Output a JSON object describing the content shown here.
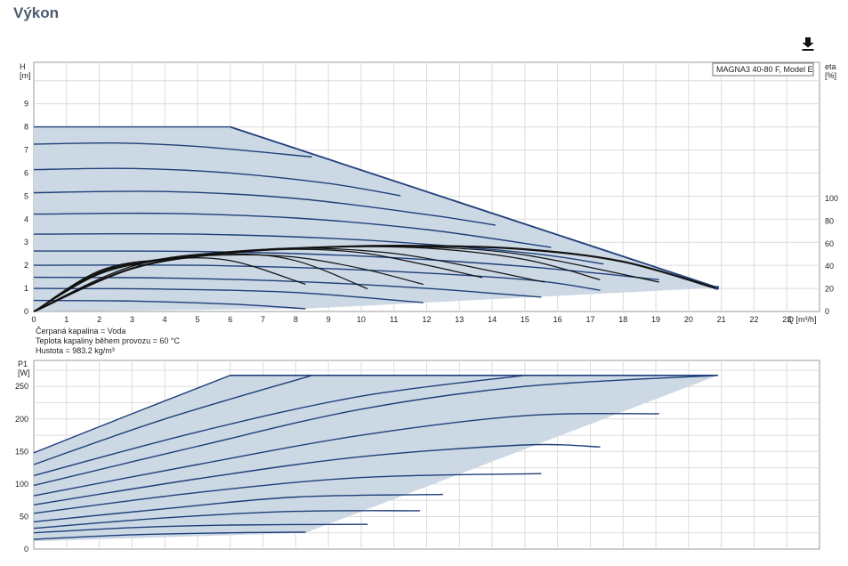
{
  "page": {
    "title": "Výkon"
  },
  "toolbar": {
    "download_icon": "download-icon"
  },
  "fluid_notes": [
    "Čerpaná kapalina = Voda",
    "Teplota kapaliny během provozu = 60 °C",
    "Hustota = 983.2 kg/m³"
  ],
  "colors": {
    "curve": "#1f3f7a",
    "area": "#ccd8e4",
    "grid": "#dcdcdc",
    "efficiency": "#111111"
  },
  "chart_data": [
    {
      "type": "line",
      "id": "head",
      "legend": "MAGNA3 40-80 F, Model E",
      "legend_position": "top-right",
      "ylabel": "H\n[m]",
      "y2label": "eta\n[%]",
      "xlabel": "Q [m³/h]",
      "xlim": [
        0,
        24
      ],
      "ylim": [
        0,
        10.8
      ],
      "y2lim": [
        0,
        100
      ],
      "x_ticks": [
        0,
        1,
        2,
        3,
        4,
        5,
        6,
        7,
        8,
        9,
        10,
        11,
        12,
        13,
        14,
        15,
        16,
        17,
        18,
        19,
        20,
        21,
        22,
        23
      ],
      "y_ticks": [
        0,
        1,
        2,
        3,
        4,
        5,
        6,
        7,
        8,
        9
      ],
      "y2_ticks": [
        0,
        20,
        40,
        60,
        80,
        100
      ],
      "grid": true,
      "envelope": [
        [
          0,
          8
        ],
        [
          6,
          8
        ],
        [
          20.9,
          1.03
        ],
        [
          8.3,
          0.12
        ],
        [
          0,
          0.0
        ]
      ],
      "series": [
        {
          "x": [
            0,
            2,
            4,
            6
          ],
          "y": [
            8,
            8,
            8,
            8
          ]
        },
        {
          "x": [
            0,
            2.5,
            5,
            8.5
          ],
          "y": [
            7.25,
            7.3,
            7.15,
            6.7
          ]
        },
        {
          "x": [
            0,
            3,
            6,
            9,
            11.2
          ],
          "y": [
            6.15,
            6.2,
            6.0,
            5.55,
            5.02
          ]
        },
        {
          "x": [
            0,
            4,
            8,
            12,
            14.1
          ],
          "y": [
            5.15,
            5.2,
            4.9,
            4.2,
            3.74
          ]
        },
        {
          "x": [
            0,
            4,
            8,
            12,
            15.8
          ],
          "y": [
            4.22,
            4.25,
            4.05,
            3.55,
            2.78
          ]
        },
        {
          "x": [
            0,
            5,
            10,
            15,
            17.4
          ],
          "y": [
            3.35,
            3.35,
            3.1,
            2.55,
            2.06
          ]
        },
        {
          "x": [
            0,
            5,
            10,
            15,
            19.1
          ],
          "y": [
            2.62,
            2.6,
            2.4,
            1.95,
            1.38
          ]
        },
        {
          "x": [
            0,
            5,
            10,
            15,
            17.3
          ],
          "y": [
            2.0,
            2.0,
            1.8,
            1.38,
            0.92
          ]
        },
        {
          "x": [
            0,
            4,
            8,
            12,
            15.5
          ],
          "y": [
            1.48,
            1.45,
            1.3,
            1.0,
            0.62
          ]
        },
        {
          "x": [
            0,
            4,
            8,
            11.9
          ],
          "y": [
            1.0,
            0.97,
            0.82,
            0.38
          ]
        },
        {
          "x": [
            0,
            3,
            6,
            8.3
          ],
          "y": [
            0.48,
            0.45,
            0.32,
            0.12
          ]
        }
      ],
      "efficiency_series": [
        {
          "x": [
            0,
            3,
            6,
            9,
            12,
            15,
            18,
            20.9
          ],
          "y": [
            0,
            38,
            52,
            57,
            58,
            55,
            44,
            20
          ]
        },
        {
          "x": [
            0,
            2,
            4,
            6,
            8,
            10,
            12,
            13.7
          ],
          "y": [
            0,
            33,
            46,
            52,
            55,
            52,
            41,
            30
          ]
        },
        {
          "x": [
            0,
            2,
            4,
            6,
            8,
            10,
            12,
            15.6
          ],
          "y": [
            0,
            34,
            47,
            53,
            56,
            54,
            47,
            26
          ]
        },
        {
          "x": [
            0,
            3,
            6,
            9,
            12,
            15,
            17.3
          ],
          "y": [
            0,
            40,
            52,
            57,
            56,
            46,
            28
          ]
        },
        {
          "x": [
            0,
            3,
            6,
            9,
            12,
            15,
            19.1
          ],
          "y": [
            0,
            40,
            52,
            57,
            57,
            50,
            26
          ]
        },
        {
          "x": [
            0,
            2,
            4,
            6,
            8,
            10.2
          ],
          "y": [
            0,
            35,
            46,
            51,
            45,
            20
          ]
        },
        {
          "x": [
            0,
            2,
            4,
            6,
            8.3
          ],
          "y": [
            0,
            36,
            46,
            45,
            24
          ]
        },
        {
          "x": [
            0,
            2,
            4,
            6,
            8,
            10,
            11.9
          ],
          "y": [
            0,
            34,
            46,
            50,
            48,
            38,
            24
          ]
        }
      ]
    },
    {
      "type": "line",
      "id": "power",
      "ylabel": "P1\n[W]",
      "xlim": [
        0,
        24
      ],
      "ylim": [
        0,
        290
      ],
      "y_ticks": [
        0,
        50,
        100,
        150,
        200,
        250
      ],
      "grid": true,
      "envelope": [
        [
          0,
          148
        ],
        [
          6,
          267
        ],
        [
          20.9,
          267
        ],
        [
          8.3,
          25
        ],
        [
          0,
          12
        ]
      ],
      "series": [
        {
          "x": [
            0,
            3,
            6
          ],
          "y": [
            148,
            208,
            267
          ]
        },
        {
          "x": [
            0,
            4,
            8.5
          ],
          "y": [
            130,
            200,
            267
          ]
        },
        {
          "x": [
            0,
            5,
            10,
            15
          ],
          "y": [
            113,
            180,
            235,
            267
          ]
        },
        {
          "x": [
            0,
            5,
            10,
            15,
            20.9
          ],
          "y": [
            98,
            158,
            215,
            250,
            267
          ]
        },
        {
          "x": [
            0,
            5,
            10,
            15,
            19.1
          ],
          "y": [
            82,
            130,
            175,
            205,
            208
          ]
        },
        {
          "x": [
            0,
            5,
            10,
            15,
            17.3
          ],
          "y": [
            68,
            108,
            142,
            160,
            157
          ]
        },
        {
          "x": [
            0,
            5,
            10,
            15.5
          ],
          "y": [
            55,
            87,
            110,
            116
          ]
        },
        {
          "x": [
            0,
            4,
            8,
            12.5
          ],
          "y": [
            42,
            62,
            80,
            84
          ]
        },
        {
          "x": [
            0,
            4,
            8,
            11.8
          ],
          "y": [
            32,
            48,
            58,
            59
          ]
        },
        {
          "x": [
            0,
            3,
            6,
            10.2
          ],
          "y": [
            25,
            33,
            37,
            38
          ]
        },
        {
          "x": [
            0,
            3,
            6,
            8.3
          ],
          "y": [
            15,
            22,
            25,
            26
          ]
        }
      ]
    }
  ]
}
